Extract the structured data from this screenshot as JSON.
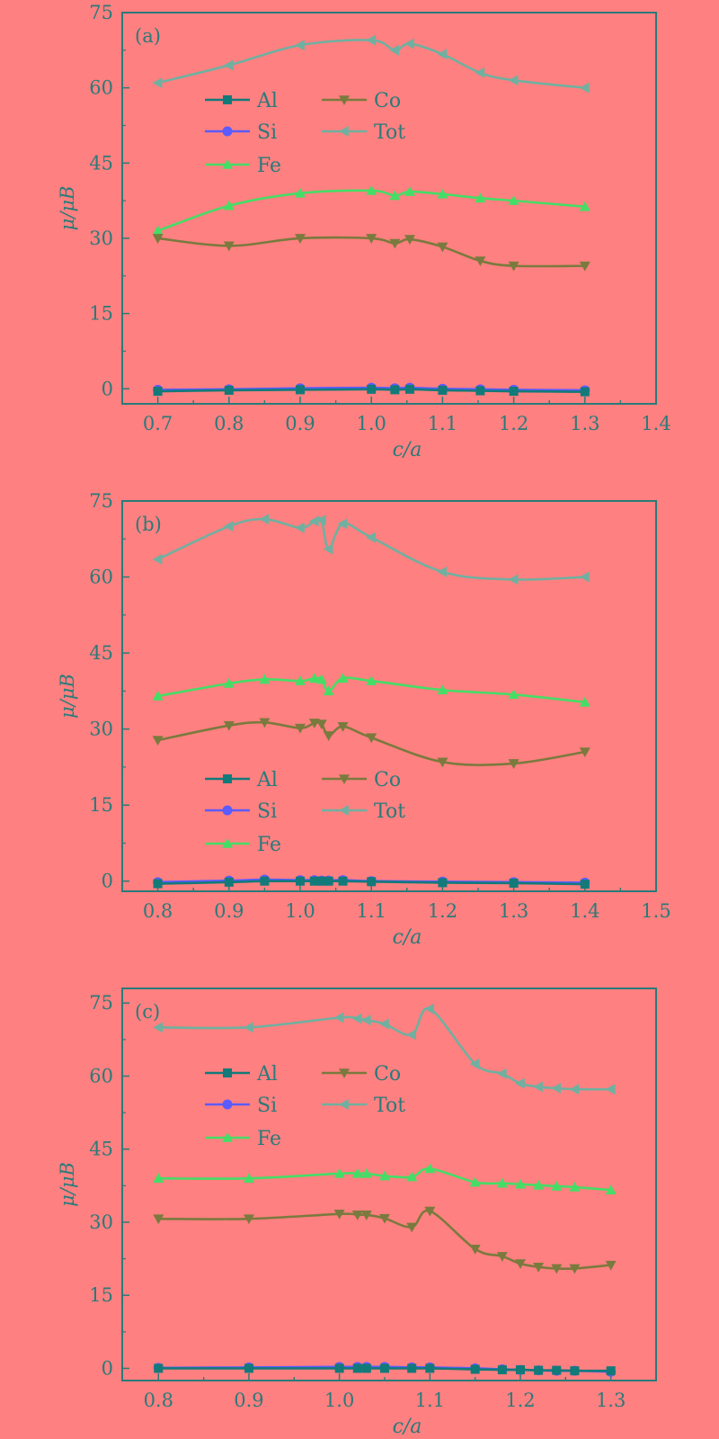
{
  "colors": {
    "background": "#ff8080",
    "frame": "#2a7a7a",
    "Al": "#137a7a",
    "Si": "#5b5bff",
    "Fe": "#44dd66",
    "Co": "#7a7a3e",
    "Tot": "#6fb0a0"
  },
  "chart_data": [
    {
      "type": "line",
      "panel_label": "(a)",
      "xlabel": "c/a",
      "ylabel": "μ/μB",
      "xlim": [
        0.65,
        1.4
      ],
      "ylim": [
        -3,
        75
      ],
      "xticks": [
        "0.7",
        "0.8",
        "0.9",
        "1.0",
        "1.1",
        "1.2",
        "1.3",
        "1.4"
      ],
      "yticks": [
        "0",
        "15",
        "30",
        "45",
        "60",
        "75"
      ],
      "legend": {
        "position": "upper-left",
        "entries": [
          "Al",
          "Co",
          "Si",
          "Tot",
          "Fe"
        ]
      },
      "x": [
        0.7,
        0.8,
        0.9,
        1.0,
        1.033,
        1.054,
        1.1,
        1.153,
        1.2,
        1.3
      ],
      "series": [
        {
          "name": "Al",
          "marker": "square",
          "values": [
            -0.5,
            -0.3,
            -0.2,
            -0.1,
            -0.2,
            -0.1,
            -0.3,
            -0.4,
            -0.5,
            -0.6
          ]
        },
        {
          "name": "Si",
          "marker": "circle",
          "values": [
            -0.2,
            -0.1,
            0.1,
            0.2,
            0.1,
            0.2,
            0.0,
            -0.1,
            -0.2,
            -0.3
          ]
        },
        {
          "name": "Fe",
          "marker": "triangle-up",
          "values": [
            31.5,
            36.5,
            39.0,
            39.5,
            38.5,
            39.3,
            38.8,
            38.0,
            37.5,
            36.3
          ]
        },
        {
          "name": "Co",
          "marker": "triangle-down",
          "values": [
            30.0,
            28.5,
            30.0,
            30.0,
            29.0,
            29.8,
            28.3,
            25.5,
            24.5,
            24.5
          ]
        },
        {
          "name": "Tot",
          "marker": "triangle-left",
          "values": [
            61.0,
            64.5,
            68.5,
            69.5,
            67.5,
            68.8,
            66.7,
            63.0,
            61.5,
            60.0
          ]
        }
      ]
    },
    {
      "type": "line",
      "panel_label": "(b)",
      "xlabel": "c/a",
      "ylabel": "μ/μB",
      "xlim": [
        0.75,
        1.5
      ],
      "ylim": [
        -2,
        75
      ],
      "xticks": [
        "0.8",
        "0.9",
        "1.0",
        "1.1",
        "1.2",
        "1.3",
        "1.4",
        "1.5"
      ],
      "yticks": [
        "0",
        "15",
        "30",
        "45",
        "60",
        "75"
      ],
      "legend": {
        "position": "center-left",
        "entries": [
          "Al",
          "Co",
          "Si",
          "Tot",
          "Fe"
        ]
      },
      "x": [
        0.8,
        0.9,
        0.95,
        1.0,
        1.02,
        1.03,
        1.04,
        1.06,
        1.1,
        1.2,
        1.3,
        1.4
      ],
      "series": [
        {
          "name": "Al",
          "marker": "square",
          "values": [
            -0.5,
            -0.2,
            0.0,
            0.0,
            0.0,
            0.0,
            0.0,
            0.0,
            -0.1,
            -0.3,
            -0.4,
            -0.6
          ]
        },
        {
          "name": "Si",
          "marker": "circle",
          "values": [
            -0.2,
            0.1,
            0.3,
            0.2,
            0.2,
            0.1,
            0.1,
            0.2,
            0.0,
            -0.1,
            -0.2,
            -0.3
          ]
        },
        {
          "name": "Fe",
          "marker": "triangle-up",
          "values": [
            36.5,
            39.0,
            39.8,
            39.5,
            40.0,
            39.8,
            37.5,
            40.0,
            39.5,
            37.7,
            36.8,
            35.3
          ]
        },
        {
          "name": "Co",
          "marker": "triangle-down",
          "values": [
            27.8,
            30.7,
            31.3,
            30.2,
            31.2,
            31.0,
            28.7,
            30.5,
            28.3,
            23.5,
            23.2,
            25.5
          ]
        },
        {
          "name": "Tot",
          "marker": "triangle-left",
          "values": [
            63.5,
            70.0,
            71.4,
            69.7,
            71.0,
            71.2,
            65.5,
            70.5,
            67.8,
            61.0,
            59.5,
            60.0
          ]
        }
      ]
    },
    {
      "type": "line",
      "panel_label": "(c)",
      "xlabel": "c/a",
      "ylabel": "μ/μB",
      "xlim": [
        0.76,
        1.35
      ],
      "ylim": [
        -2.5,
        78
      ],
      "xticks": [
        "0.8",
        "0.9",
        "1.0",
        "1.1",
        "1.2",
        "1.3"
      ],
      "yticks": [
        "0",
        "15",
        "30",
        "45",
        "60",
        "75"
      ],
      "legend": {
        "position": "upper-left",
        "entries": [
          "Al",
          "Co",
          "Si",
          "Tot",
          "Fe"
        ]
      },
      "x": [
        0.8,
        0.9,
        1.0,
        1.02,
        1.03,
        1.05,
        1.08,
        1.1,
        1.15,
        1.18,
        1.2,
        1.22,
        1.24,
        1.26,
        1.3
      ],
      "series": [
        {
          "name": "Al",
          "marker": "square",
          "values": [
            0.0,
            0.0,
            0.0,
            0.0,
            0.0,
            0.0,
            0.0,
            0.0,
            -0.2,
            -0.3,
            -0.3,
            -0.4,
            -0.4,
            -0.5,
            -0.5
          ]
        },
        {
          "name": "Si",
          "marker": "circle",
          "values": [
            0.1,
            0.2,
            0.3,
            0.3,
            0.3,
            0.3,
            0.2,
            0.2,
            0.0,
            -0.2,
            -0.3,
            -0.4,
            -0.5,
            -0.5,
            -0.7
          ]
        },
        {
          "name": "Fe",
          "marker": "triangle-up",
          "values": [
            39.0,
            39.0,
            40.0,
            40.0,
            40.0,
            39.5,
            39.3,
            41.0,
            38.2,
            38.0,
            37.8,
            37.6,
            37.4,
            37.2,
            36.6
          ]
        },
        {
          "name": "Co",
          "marker": "triangle-down",
          "values": [
            30.7,
            30.7,
            31.7,
            31.5,
            31.5,
            30.8,
            29.0,
            32.3,
            24.5,
            23.0,
            21.5,
            20.8,
            20.5,
            20.5,
            21.2
          ]
        },
        {
          "name": "Tot",
          "marker": "triangle-left",
          "values": [
            70.0,
            70.0,
            72.0,
            71.8,
            71.5,
            70.7,
            68.5,
            73.8,
            62.5,
            60.5,
            58.5,
            57.8,
            57.5,
            57.3,
            57.3
          ]
        }
      ]
    }
  ]
}
